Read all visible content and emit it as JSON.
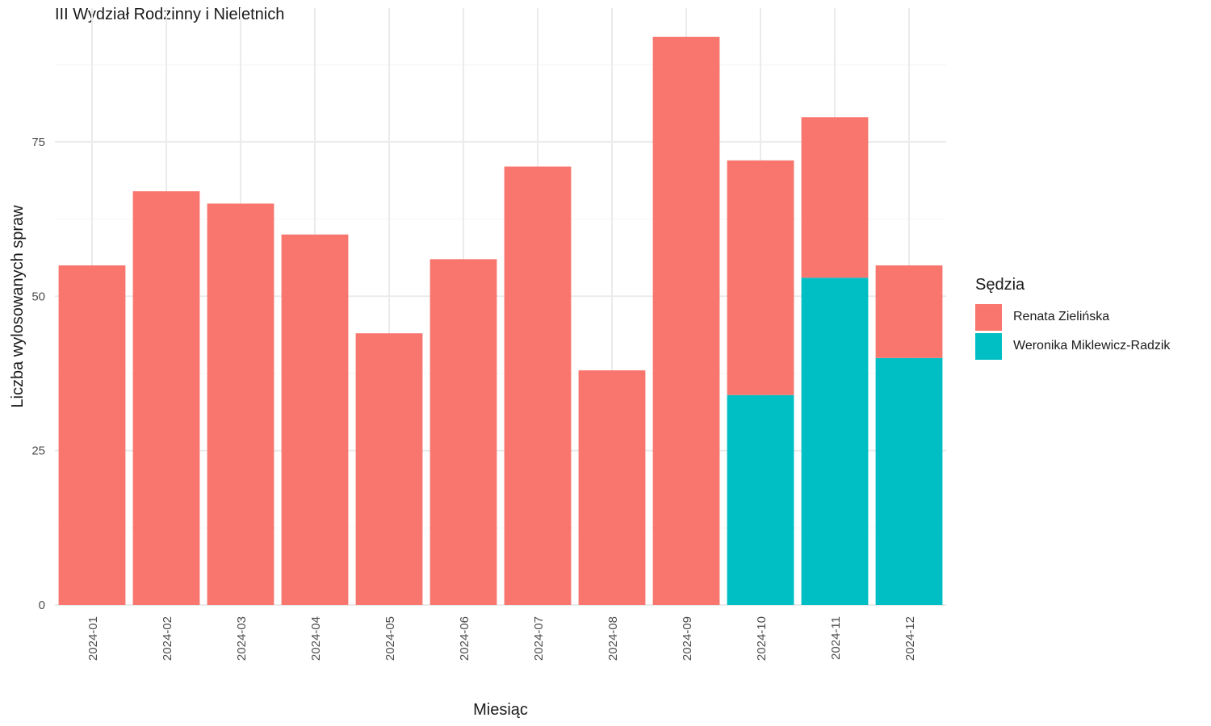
{
  "chart_data": {
    "type": "bar",
    "stacked": true,
    "title": "III Wydział Rodzinny i Nieletnich",
    "xlabel": "Miesiąc",
    "ylabel": "Liczba wylosowanych spraw",
    "ylim": [
      0,
      96
    ],
    "yticks": [
      0,
      25,
      50,
      75
    ],
    "grid": true,
    "legend_title": "Sędzia",
    "legend_position": "right",
    "categories": [
      "2024-01",
      "2024-02",
      "2024-03",
      "2024-04",
      "2024-05",
      "2024-06",
      "2024-07",
      "2024-08",
      "2024-09",
      "2024-10",
      "2024-11",
      "2024-12"
    ],
    "series": [
      {
        "name": "Weronika Miklewicz-Radzik",
        "color": "#00BFC4",
        "values": [
          0,
          0,
          0,
          0,
          0,
          0,
          0,
          0,
          0,
          34,
          53,
          40
        ]
      },
      {
        "name": "Renata Zielińska",
        "color": "#F8766D",
        "values": [
          55,
          67,
          65,
          60,
          44,
          56,
          71,
          38,
          92,
          38,
          26,
          15
        ]
      }
    ],
    "legend_order": [
      "Renata Zielińska",
      "Weronika Miklewicz-Radzik"
    ]
  }
}
